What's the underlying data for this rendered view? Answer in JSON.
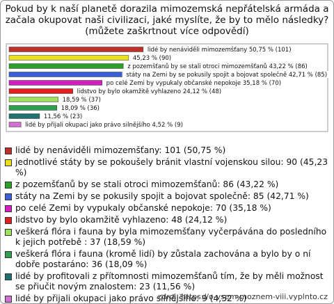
{
  "chart_data": {
    "type": "hbar",
    "title": "Pokud by k naší planetě dorazila mimozemská nepřátelská armáda a začala okupovat naši civilizaci, jaké myslíte, že by to mělo následky? (můžete zaškrtnout více odpovědí)",
    "categories": [
      "lidé by nenáviděli mimozemšťany: 101 (50,75 %)",
      "jednotlivé státy by se pokoušely bránit vlastní vojenskou silou: 90 (45,23 %)",
      "z pozemšťanů by se stali otroci mimozemšťanů: 86 (43,22 %)",
      "státy na Zemi by se pokusily spojit a bojovat společně: 85 (42,71 %)",
      "po celé Zemi by vypukaly občanské nepokoje: 70 (35,18 %)",
      "lidstvo by bylo okamžitě vyhlazeno: 48 (24,12 %)",
      "veškerá flóra i fauna by byla mimozemšťany vyčerpávána do posledního k jejich potřebě : 37 (18,59 %)",
      "veškerá flóra i fauna (kromě lidí) by zůstala zachována a bylo by o ní dobře postaráno: 36 (18,09 %)",
      "lidé by profitovali z přítomnosti mimozemšťanů tím, že by měli možnost se přiučit novým znalostem: 23 (11,56 %)",
      "lidé by přijali okupaci jako právo silnějšího: 9 (4,52 %)"
    ],
    "values": [
      50.75,
      45.23,
      43.22,
      42.71,
      35.18,
      24.12,
      18.59,
      18.09,
      11.56,
      4.52
    ],
    "value_labels": [
      "lidé by nenáviděli mimozemšťany 50,75 % (101)",
      "45,23 % (90)",
      "z pozemšťanů by se stali otroci mimozemšťanů 43,22 % (86)",
      "státy na Zemi by se pokusily spojit a bojovat společně 42,71 % (85)",
      "po celé Zemi by vypukaly občanské nepokoje 35,18 % (70)",
      "lidstvo by bylo okamžitě vyhlazeno 24,12 % (48)",
      "18,59 % (37)",
      "18,09 % (36)",
      "11,56 % (23)",
      "lidé by přijali okupaci jako právo silnějšího 4,52 % (9)"
    ],
    "colors": [
      "#c0302a",
      "#e8e020",
      "#2aa02a",
      "#3a5fd8",
      "#d020c0",
      "#e02020",
      "#a0e060",
      "#30a050",
      "#207070",
      "#d070d0"
    ],
    "xlim": [
      0,
      100
    ],
    "source": "zdroj: https://o-vsem-moznem-viii.vyplnto.cz"
  }
}
